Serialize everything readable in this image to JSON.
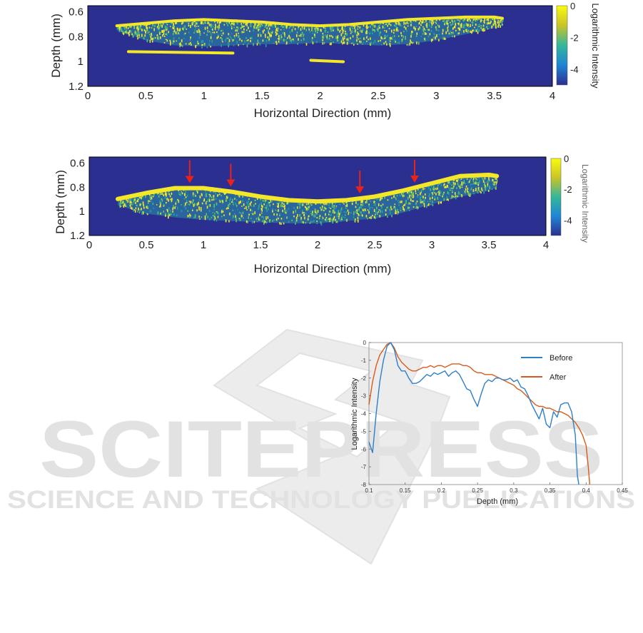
{
  "watermark": {
    "main": "SCITEPRESS",
    "sub": "SCIENCE AND TECHNOLOGY PUBLICATIONS",
    "color": "#dcdcdc"
  },
  "colors": {
    "background": "#ffffff",
    "image_bg": "#2b2f90",
    "tissue_yellow": "#f4e728",
    "tissue_teal": "#2a9e9a",
    "arrow": "#e8231a",
    "before": "#2f7fc7",
    "after": "#d95a1c"
  },
  "chart_data": [
    {
      "type": "heatmap",
      "title": "",
      "xlabel": "Horizontal Direction (mm)",
      "ylabel": "Depth (mm)",
      "xlim": [
        0,
        4
      ],
      "ylim": [
        1.2,
        0.55
      ],
      "xticks": [
        "0",
        "0.5",
        "1",
        "1.5",
        "2",
        "2.5",
        "3",
        "3.5",
        "4"
      ],
      "yticks": [
        "0.6",
        "0.8",
        "1",
        "1.2"
      ],
      "colorbar": {
        "label": "Logarithmic Intensity",
        "ticks": [
          "0",
          "-2",
          "-4"
        ],
        "range": [
          -5,
          0
        ]
      },
      "surface": {
        "x": [
          0.25,
          0.5,
          0.75,
          1.0,
          1.25,
          1.5,
          1.75,
          2.0,
          2.25,
          2.5,
          2.75,
          3.0,
          3.25,
          3.5,
          3.57
        ],
        "top": [
          0.7,
          0.68,
          0.66,
          0.65,
          0.66,
          0.67,
          0.69,
          0.7,
          0.69,
          0.67,
          0.65,
          0.64,
          0.63,
          0.63,
          0.64
        ],
        "bottom": [
          0.75,
          0.83,
          0.87,
          0.88,
          0.87,
          0.86,
          0.86,
          0.85,
          0.86,
          0.87,
          0.86,
          0.83,
          0.78,
          0.73,
          0.71
        ]
      },
      "extra_segments": [
        {
          "x": [
            0.35,
            1.25
          ],
          "depth": 0.92
        },
        {
          "x": [
            1.92,
            2.2
          ],
          "depth": 0.99
        }
      ]
    },
    {
      "type": "heatmap",
      "title": "",
      "xlabel": "Horizontal Direction (mm)",
      "ylabel": "Depth (mm)",
      "xlim": [
        0,
        4
      ],
      "ylim": [
        1.2,
        0.55
      ],
      "xticks": [
        "0",
        "0.5",
        "1",
        "1.5",
        "2",
        "2.5",
        "3",
        "3.5",
        "4"
      ],
      "yticks": [
        "0.6",
        "0.8",
        "1",
        "1.2"
      ],
      "colorbar": {
        "label": "Logarithmic Intensity",
        "ticks": [
          "0",
          "-2",
          "-4"
        ],
        "range": [
          -5,
          0
        ]
      },
      "surface": {
        "x": [
          0.25,
          0.5,
          0.75,
          1.0,
          1.25,
          1.5,
          1.75,
          2.0,
          2.25,
          2.5,
          2.75,
          3.0,
          3.25,
          3.5,
          3.57
        ],
        "top": [
          0.88,
          0.83,
          0.79,
          0.79,
          0.82,
          0.86,
          0.89,
          0.9,
          0.89,
          0.86,
          0.81,
          0.75,
          0.69,
          0.68,
          0.69
        ],
        "bottom": [
          0.95,
          1.02,
          1.05,
          1.07,
          1.08,
          1.09,
          1.1,
          1.1,
          1.08,
          1.06,
          1.01,
          0.94,
          0.88,
          0.83,
          0.8
        ]
      },
      "arrows_x": [
        0.88,
        1.24,
        2.37,
        2.85
      ]
    },
    {
      "type": "line",
      "title": "",
      "xlabel": "Depth (mm)",
      "ylabel": "Logarithmic Intensity",
      "xlim": [
        0.1,
        0.45
      ],
      "ylim": [
        -8,
        0
      ],
      "xticks": [
        "0.1",
        "0.15",
        "0.2",
        "0.25",
        "0.3",
        "0.35",
        "0.4",
        "0.45"
      ],
      "yticks": [
        "0",
        "-1",
        "-2",
        "-3",
        "-4",
        "-5",
        "-6",
        "-7",
        "-8"
      ],
      "legend": "top-right",
      "series": [
        {
          "name": "Before",
          "x": [
            0.1,
            0.105,
            0.11,
            0.115,
            0.12,
            0.125,
            0.13,
            0.135,
            0.14,
            0.145,
            0.15,
            0.155,
            0.16,
            0.165,
            0.17,
            0.175,
            0.18,
            0.185,
            0.19,
            0.195,
            0.2,
            0.205,
            0.21,
            0.215,
            0.22,
            0.225,
            0.23,
            0.235,
            0.24,
            0.245,
            0.25,
            0.255,
            0.26,
            0.265,
            0.27,
            0.275,
            0.28,
            0.285,
            0.29,
            0.295,
            0.3,
            0.305,
            0.31,
            0.315,
            0.32,
            0.325,
            0.33,
            0.335,
            0.34,
            0.345,
            0.35,
            0.355,
            0.36,
            0.365,
            0.37,
            0.375,
            0.38,
            0.385,
            0.388,
            0.39
          ],
          "values": [
            -5.6,
            -6.2,
            -4.0,
            -2.2,
            -1.0,
            -0.2,
            0.0,
            -0.4,
            -1.3,
            -1.6,
            -1.6,
            -2.0,
            -2.3,
            -2.3,
            -2.2,
            -2.0,
            -1.8,
            -1.9,
            -1.7,
            -1.8,
            -1.7,
            -1.6,
            -1.9,
            -1.7,
            -1.6,
            -1.8,
            -2.2,
            -2.6,
            -2.7,
            -3.2,
            -3.6,
            -2.9,
            -2.3,
            -2.1,
            -2.2,
            -2.0,
            -2.0,
            -2.1,
            -2.1,
            -2.0,
            -2.2,
            -2.1,
            -2.5,
            -2.6,
            -3.0,
            -3.5,
            -3.9,
            -4.3,
            -3.7,
            -4.6,
            -4.8,
            -3.9,
            -4.2,
            -3.5,
            -3.4,
            -3.4,
            -3.9,
            -5.2,
            -7.5,
            -8.0
          ]
        },
        {
          "name": "After",
          "x": [
            0.1,
            0.105,
            0.11,
            0.115,
            0.12,
            0.125,
            0.13,
            0.135,
            0.14,
            0.145,
            0.15,
            0.155,
            0.16,
            0.165,
            0.17,
            0.175,
            0.18,
            0.185,
            0.19,
            0.195,
            0.2,
            0.205,
            0.21,
            0.215,
            0.22,
            0.225,
            0.23,
            0.235,
            0.24,
            0.245,
            0.25,
            0.255,
            0.26,
            0.265,
            0.27,
            0.275,
            0.28,
            0.285,
            0.29,
            0.295,
            0.3,
            0.305,
            0.31,
            0.315,
            0.32,
            0.325,
            0.33,
            0.335,
            0.34,
            0.345,
            0.35,
            0.355,
            0.36,
            0.365,
            0.37,
            0.375,
            0.38,
            0.385,
            0.39,
            0.395,
            0.4,
            0.403,
            0.405
          ],
          "values": [
            -3.5,
            -2.2,
            -1.3,
            -0.7,
            -0.4,
            -0.1,
            0.0,
            -0.3,
            -0.8,
            -1.1,
            -1.3,
            -1.5,
            -1.6,
            -1.6,
            -1.5,
            -1.4,
            -1.4,
            -1.3,
            -1.4,
            -1.3,
            -1.3,
            -1.4,
            -1.3,
            -1.2,
            -1.2,
            -1.2,
            -1.3,
            -1.3,
            -1.4,
            -1.6,
            -1.7,
            -1.7,
            -1.8,
            -1.8,
            -1.8,
            -1.9,
            -2.0,
            -2.1,
            -2.2,
            -2.3,
            -2.4,
            -2.6,
            -2.7,
            -2.9,
            -3.1,
            -3.3,
            -3.5,
            -3.6,
            -3.6,
            -3.7,
            -3.7,
            -3.8,
            -3.9,
            -3.9,
            -4.0,
            -4.1,
            -4.3,
            -4.5,
            -4.8,
            -5.2,
            -5.8,
            -7.0,
            -8.0
          ]
        }
      ]
    }
  ]
}
